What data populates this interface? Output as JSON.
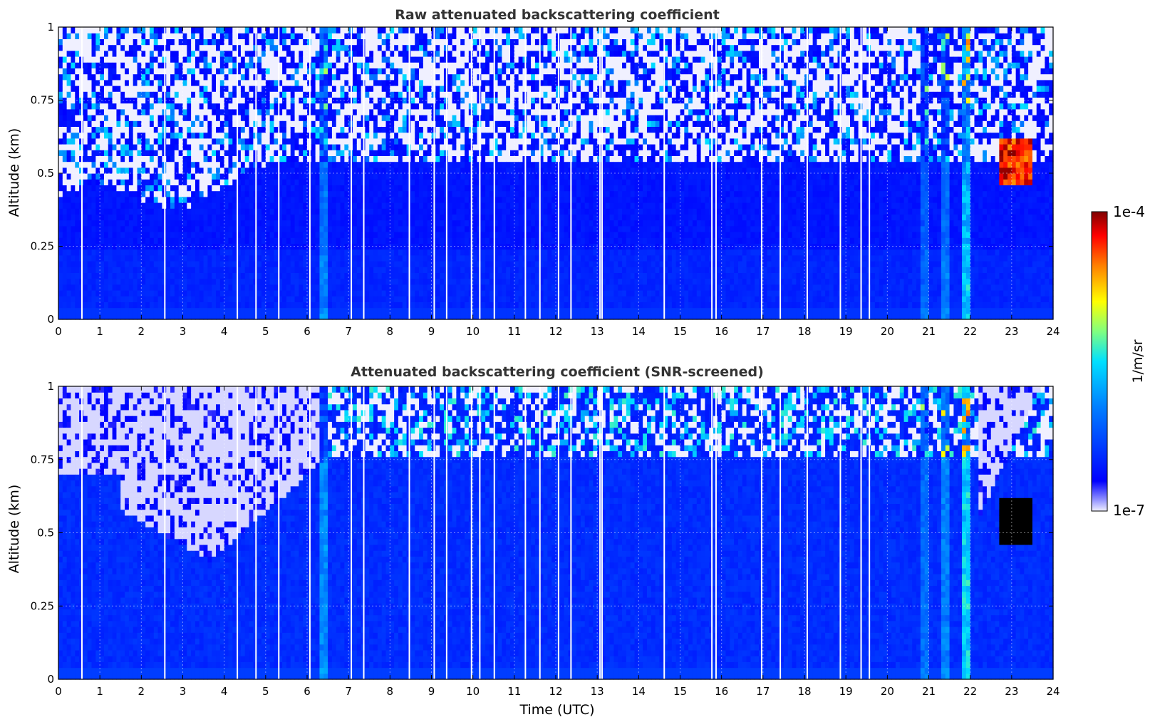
{
  "chart_data": [
    {
      "type": "heatmap",
      "title": "Raw attenuated backscattering coefficient",
      "ylabel": "Altitude (km)",
      "xlabel": "",
      "xlim": [
        0,
        24
      ],
      "ylim": [
        0,
        1
      ],
      "x_ticks": [
        "0",
        "1",
        "2",
        "3",
        "4",
        "5",
        "6",
        "7",
        "8",
        "9",
        "10",
        "11",
        "12",
        "13",
        "14",
        "15",
        "16",
        "17",
        "18",
        "19",
        "20",
        "21",
        "22",
        "23",
        "24"
      ],
      "y_ticks": [
        "0",
        "0.25",
        "0.5",
        "0.75",
        "1"
      ],
      "grid": true,
      "background_level": {
        "below_0.25km": 0.14,
        "0.25_to_0.5km": 0.11,
        "above_0.5km": "noisy, sparse"
      },
      "features": [
        {
          "label": "aerosol layer top (clear region starts above)",
          "x_range": [
            0,
            6.5
          ],
          "top_km": [
            0.38,
            0.55
          ]
        },
        {
          "label": "bright vertical streak",
          "x": 6.4,
          "level": 0.35
        },
        {
          "label": "enhanced column",
          "x_range": [
            20.8,
            21.0
          ],
          "level": 0.3
        },
        {
          "label": "enhanced column",
          "x_range": [
            21.3,
            21.5
          ],
          "level": 0.35
        },
        {
          "label": "strong column",
          "x_range": [
            21.8,
            22.0
          ],
          "level": 0.5
        },
        {
          "label": "cloud / high backscatter",
          "x_range": [
            22.7,
            23.5
          ],
          "alt_km": [
            0.45,
            0.62
          ],
          "level": 0.95
        }
      ]
    },
    {
      "type": "heatmap",
      "title": "Attenuated backscattering coefficient (SNR-screened)",
      "ylabel": "Altitude (km)",
      "xlabel": "Time (UTC)",
      "xlim": [
        0,
        24
      ],
      "ylim": [
        0,
        1
      ],
      "x_ticks": [
        "0",
        "1",
        "2",
        "3",
        "4",
        "5",
        "6",
        "7",
        "8",
        "9",
        "10",
        "11",
        "12",
        "13",
        "14",
        "15",
        "16",
        "17",
        "18",
        "19",
        "20",
        "21",
        "22",
        "23",
        "24"
      ],
      "y_ticks": [
        "0",
        "0.25",
        "0.5",
        "0.75",
        "1"
      ],
      "grid": true,
      "features": [
        {
          "label": "screened (low SNR) region",
          "x_range": [
            0,
            6.5
          ],
          "bottom_km": [
            0.4,
            0.75
          ]
        },
        {
          "label": "bright vertical streak",
          "x": 6.4,
          "level": 0.35
        },
        {
          "label": "enhanced column",
          "x_range": [
            20.8,
            21.0
          ],
          "level": 0.3
        },
        {
          "label": "enhanced column",
          "x_range": [
            21.3,
            21.5
          ],
          "level": 0.35
        },
        {
          "label": "strong column",
          "x_range": [
            21.8,
            22.0
          ],
          "level": 0.5
        },
        {
          "label": "cloud / saturated backscatter",
          "x_range": [
            22.7,
            23.5
          ],
          "alt_km": [
            0.45,
            0.62
          ],
          "level": 1.0
        }
      ]
    }
  ],
  "colorbar": {
    "max_label": "1e-4",
    "min_label": "1e-7",
    "unit_label": "1/m/sr",
    "colormap": "jet"
  }
}
